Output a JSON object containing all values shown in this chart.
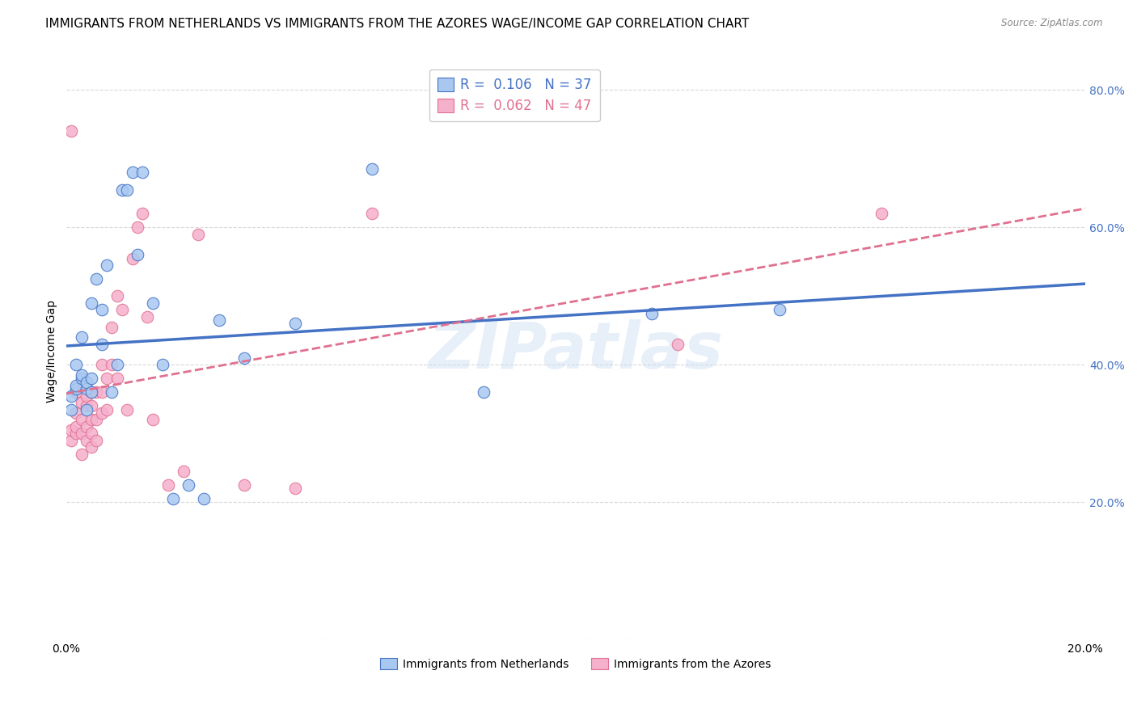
{
  "title": "IMMIGRANTS FROM NETHERLANDS VS IMMIGRANTS FROM THE AZORES WAGE/INCOME GAP CORRELATION CHART",
  "source": "Source: ZipAtlas.com",
  "ylabel": "Wage/Income Gap",
  "xlim": [
    0.0,
    0.2
  ],
  "ylim": [
    0.0,
    0.84
  ],
  "yticks": [
    0.0,
    0.2,
    0.4,
    0.6,
    0.8
  ],
  "xticks": [
    0.0,
    0.04,
    0.08,
    0.12,
    0.16,
    0.2
  ],
  "netherlands_R": 0.106,
  "netherlands_N": 37,
  "azores_R": 0.062,
  "azores_N": 47,
  "netherlands_color": "#a8c8f0",
  "azores_color": "#f5b0cc",
  "netherlands_line_color": "#4472c4",
  "azores_line_color": "#e07090",
  "netherlands_x": [
    0.001,
    0.001,
    0.002,
    0.002,
    0.002,
    0.003,
    0.003,
    0.003,
    0.004,
    0.004,
    0.004,
    0.005,
    0.005,
    0.005,
    0.006,
    0.007,
    0.007,
    0.008,
    0.009,
    0.01,
    0.011,
    0.012,
    0.013,
    0.014,
    0.015,
    0.017,
    0.019,
    0.021,
    0.024,
    0.027,
    0.03,
    0.035,
    0.045,
    0.06,
    0.082,
    0.115,
    0.14
  ],
  "netherlands_y": [
    0.335,
    0.355,
    0.365,
    0.37,
    0.4,
    0.38,
    0.385,
    0.44,
    0.335,
    0.365,
    0.375,
    0.38,
    0.49,
    0.36,
    0.525,
    0.43,
    0.48,
    0.545,
    0.36,
    0.4,
    0.655,
    0.655,
    0.68,
    0.56,
    0.68,
    0.49,
    0.4,
    0.205,
    0.225,
    0.205,
    0.465,
    0.41,
    0.46,
    0.685,
    0.36,
    0.475,
    0.48
  ],
  "azores_x": [
    0.001,
    0.001,
    0.001,
    0.002,
    0.002,
    0.002,
    0.002,
    0.003,
    0.003,
    0.003,
    0.003,
    0.004,
    0.004,
    0.004,
    0.004,
    0.005,
    0.005,
    0.005,
    0.005,
    0.005,
    0.006,
    0.006,
    0.006,
    0.007,
    0.007,
    0.007,
    0.008,
    0.008,
    0.009,
    0.009,
    0.01,
    0.01,
    0.011,
    0.012,
    0.013,
    0.014,
    0.015,
    0.016,
    0.017,
    0.02,
    0.023,
    0.026,
    0.035,
    0.045,
    0.06,
    0.12,
    0.16
  ],
  "azores_y": [
    0.74,
    0.29,
    0.305,
    0.3,
    0.31,
    0.33,
    0.36,
    0.27,
    0.3,
    0.32,
    0.345,
    0.29,
    0.31,
    0.34,
    0.355,
    0.28,
    0.3,
    0.32,
    0.34,
    0.36,
    0.29,
    0.32,
    0.36,
    0.33,
    0.36,
    0.4,
    0.335,
    0.38,
    0.4,
    0.455,
    0.38,
    0.5,
    0.48,
    0.335,
    0.555,
    0.6,
    0.62,
    0.47,
    0.32,
    0.225,
    0.245,
    0.59,
    0.225,
    0.22,
    0.62,
    0.43,
    0.62
  ],
  "background_color": "#ffffff",
  "grid_color": "#d8d8d8",
  "title_fontsize": 11,
  "axis_label_fontsize": 10,
  "tick_fontsize": 10,
  "legend_label1": "Immigrants from Netherlands",
  "legend_label2": "Immigrants from the Azores",
  "watermark": "ZIPatlas"
}
